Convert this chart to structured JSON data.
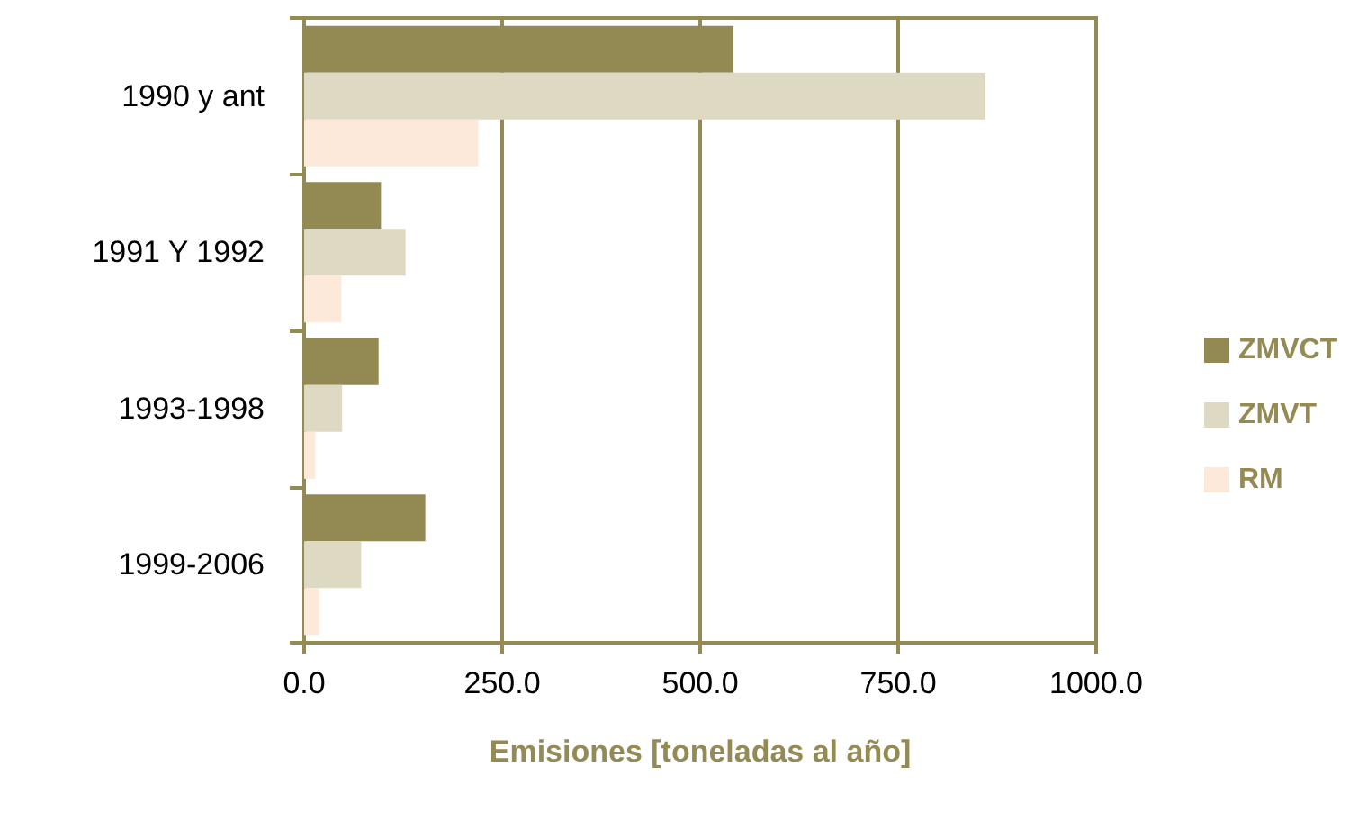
{
  "chart_data": {
    "type": "bar",
    "orientation": "horizontal",
    "xlabel": "Emisiones [toneladas al año]",
    "categories": [
      "1990 y ant",
      "1991 Y 1992",
      "1993-1998",
      "1999-2006"
    ],
    "series": [
      {
        "name": "ZMVCT",
        "color": "#938953",
        "values": [
          542,
          97,
          94,
          153
        ]
      },
      {
        "name": "ZMVT",
        "color": "#ddd9c3",
        "values": [
          860,
          128,
          48,
          72
        ]
      },
      {
        "name": "RM",
        "color": "#fde9d9",
        "values": [
          220,
          47,
          14,
          19
        ]
      }
    ],
    "xlim": [
      0,
      1000
    ],
    "xticks": [
      {
        "value": 0,
        "label": "0.0"
      },
      {
        "value": 250,
        "label": "250.0"
      },
      {
        "value": 500,
        "label": "500.0"
      },
      {
        "value": 750,
        "label": "750.0"
      },
      {
        "value": 1000,
        "label": "1000.0"
      }
    ],
    "grid": "x",
    "legend": "right"
  }
}
